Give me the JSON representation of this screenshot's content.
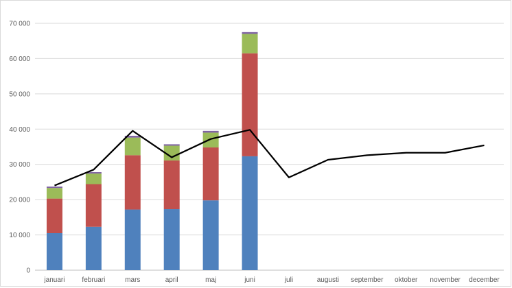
{
  "chart_data": {
    "type": "bar",
    "stacked": true,
    "categories": [
      "januari",
      "februari",
      "mars",
      "april",
      "maj",
      "juni",
      "juli",
      "augusti",
      "september",
      "oktober",
      "november",
      "december"
    ],
    "y_tick_labels": [
      "0",
      "10 000",
      "20 000",
      "30 000",
      "40 000",
      "50 000",
      "60 000",
      "70 000"
    ],
    "ylim": [
      0,
      70000
    ],
    "grid": true,
    "legend": "none",
    "series": [
      {
        "color": "#4f81bd",
        "values": [
          10500,
          12300,
          17200,
          17300,
          19800,
          32300,
          null,
          null,
          null,
          null,
          null,
          null
        ]
      },
      {
        "color": "#c0504d",
        "values": [
          9800,
          12100,
          15400,
          13800,
          15000,
          29200,
          null,
          null,
          null,
          null,
          null,
          null
        ]
      },
      {
        "color": "#9bbb59",
        "values": [
          3000,
          3000,
          5000,
          4200,
          4200,
          5500,
          null,
          null,
          null,
          null,
          null,
          null
        ]
      },
      {
        "color": "#8064a2",
        "values": [
          400,
          400,
          500,
          400,
          500,
          500,
          null,
          null,
          null,
          null,
          null,
          null
        ]
      }
    ],
    "line": {
      "type": "line",
      "color": "#000000",
      "values": [
        24000,
        28500,
        39500,
        32000,
        37200,
        39800,
        26300,
        31300,
        32600,
        33300,
        33300,
        35400
      ]
    }
  }
}
